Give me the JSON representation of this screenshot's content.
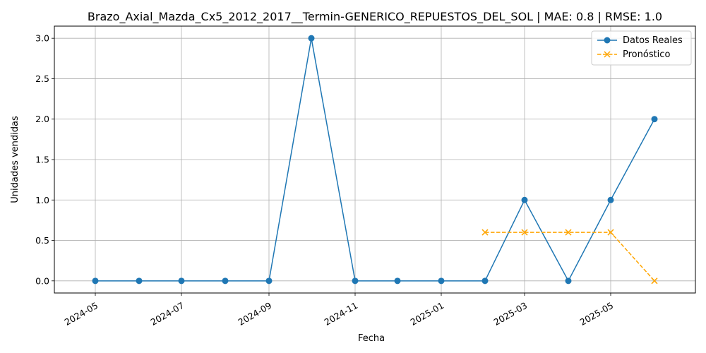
{
  "chart_data": {
    "type": "line",
    "title": "Brazo_Axial_Mazda_Cx5_2012_2017__Termin-GENERICO_REPUESTOS_DEL_SOL | MAE: 0.8 | RMSE: 1.0",
    "xlabel": "Fecha",
    "ylabel": "Unidades vendidas",
    "xlim": [
      "2024-04-02",
      "2025-06-30"
    ],
    "ylim": [
      -0.15,
      3.15
    ],
    "x_ticks": [
      "2024-05",
      "2024-07",
      "2024-09",
      "2024-11",
      "2025-01",
      "2025-03",
      "2025-05"
    ],
    "y_ticks": [
      "0.0",
      "0.5",
      "1.0",
      "1.5",
      "2.0",
      "2.5",
      "3.0"
    ],
    "grid": true,
    "legend_position": "top-right",
    "series": [
      {
        "name": "Datos Reales",
        "color": "#1f77b4",
        "style": "solid",
        "marker": "circle",
        "x": [
          "2024-05-01",
          "2024-06-01",
          "2024-07-01",
          "2024-08-01",
          "2024-09-01",
          "2024-10-01",
          "2024-11-01",
          "2024-12-01",
          "2025-01-01",
          "2025-02-01",
          "2025-03-01",
          "2025-04-01",
          "2025-05-01",
          "2025-06-01"
        ],
        "values": [
          0,
          0,
          0,
          0,
          0,
          3,
          0,
          0,
          0,
          0,
          1,
          0,
          1,
          2
        ]
      },
      {
        "name": "Pronóstico",
        "color": "#ffa500",
        "style": "dashed",
        "marker": "x",
        "x": [
          "2025-02-01",
          "2025-03-01",
          "2025-04-01",
          "2025-05-01",
          "2025-06-01"
        ],
        "values": [
          0.6,
          0.6,
          0.6,
          0.6,
          0
        ]
      }
    ]
  }
}
